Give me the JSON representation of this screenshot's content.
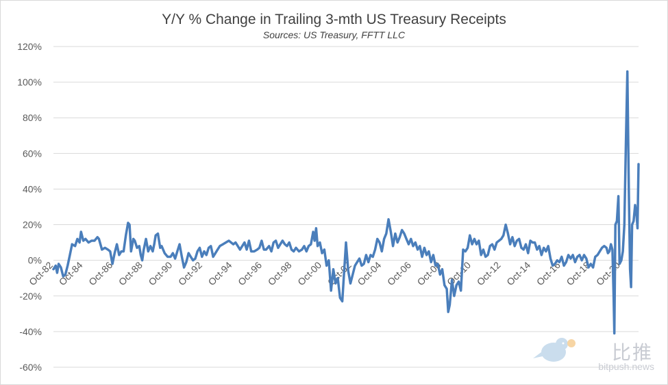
{
  "chart_data": {
    "type": "line",
    "title": "Y/Y % Change in Trailing 3-mth US Treasury Receipts",
    "subtitle": "Sources: US Treasury, FFTT LLC",
    "xlabel": "",
    "ylabel": "",
    "ylim": [
      -60,
      120
    ],
    "y_ticks": [
      "-60%",
      "-40%",
      "-20%",
      "0%",
      "20%",
      "40%",
      "60%",
      "80%",
      "100%",
      "120%"
    ],
    "x_ticks": [
      "Oct-82",
      "Oct-84",
      "Oct-86",
      "Oct-88",
      "Oct-90",
      "Oct-92",
      "Oct-94",
      "Oct-96",
      "Oct-98",
      "Oct-00",
      "Oct-02",
      "Oct-04",
      "Oct-06",
      "Oct-08",
      "Oct-10",
      "Oct-12",
      "Oct-14",
      "Oct-16",
      "Oct-18",
      "Oct-20"
    ],
    "grid": "horizontal",
    "line_color": "#4a7ebb",
    "series": [
      {
        "points": [
          [
            1982.75,
            -5
          ],
          [
            1982.9,
            -3
          ],
          [
            1983.0,
            -7
          ],
          [
            1983.1,
            -2
          ],
          [
            1983.25,
            -4
          ],
          [
            1983.4,
            -9
          ],
          [
            1983.55,
            -8
          ],
          [
            1983.7,
            -3
          ],
          [
            1983.85,
            3
          ],
          [
            1984.0,
            9
          ],
          [
            1984.2,
            8
          ],
          [
            1984.35,
            12
          ],
          [
            1984.5,
            10
          ],
          [
            1984.6,
            16
          ],
          [
            1984.75,
            11
          ],
          [
            1984.9,
            12
          ],
          [
            1985.1,
            10
          ],
          [
            1985.3,
            11
          ],
          [
            1985.5,
            11
          ],
          [
            1985.7,
            13
          ],
          [
            1985.8,
            12
          ],
          [
            1986.0,
            6
          ],
          [
            1986.2,
            7
          ],
          [
            1986.4,
            6
          ],
          [
            1986.55,
            5
          ],
          [
            1986.7,
            -2
          ],
          [
            1986.85,
            4
          ],
          [
            1987.0,
            9
          ],
          [
            1987.15,
            3
          ],
          [
            1987.3,
            5
          ],
          [
            1987.45,
            5
          ],
          [
            1987.6,
            14
          ],
          [
            1987.75,
            21
          ],
          [
            1987.85,
            20
          ],
          [
            1987.95,
            5
          ],
          [
            1988.1,
            12
          ],
          [
            1988.2,
            11
          ],
          [
            1988.35,
            7
          ],
          [
            1988.5,
            8
          ],
          [
            1988.6,
            3
          ],
          [
            1988.7,
            0
          ],
          [
            1988.8,
            6
          ],
          [
            1988.95,
            12
          ],
          [
            1989.1,
            5
          ],
          [
            1989.25,
            8
          ],
          [
            1989.4,
            5
          ],
          [
            1989.5,
            9
          ],
          [
            1989.6,
            14
          ],
          [
            1989.75,
            15
          ],
          [
            1989.9,
            7
          ],
          [
            1990.0,
            8
          ],
          [
            1990.2,
            4
          ],
          [
            1990.4,
            2
          ],
          [
            1990.6,
            2
          ],
          [
            1990.75,
            4
          ],
          [
            1990.9,
            1
          ],
          [
            1991.05,
            5
          ],
          [
            1991.2,
            9
          ],
          [
            1991.35,
            2
          ],
          [
            1991.5,
            -4
          ],
          [
            1991.65,
            -1
          ],
          [
            1991.8,
            4
          ],
          [
            1991.95,
            2
          ],
          [
            1992.1,
            0
          ],
          [
            1992.25,
            1
          ],
          [
            1992.4,
            5
          ],
          [
            1992.55,
            7
          ],
          [
            1992.7,
            2
          ],
          [
            1992.85,
            5
          ],
          [
            1993.0,
            3
          ],
          [
            1993.15,
            7
          ],
          [
            1993.3,
            8
          ],
          [
            1993.45,
            2
          ],
          [
            1993.6,
            4
          ],
          [
            1993.75,
            6
          ],
          [
            1993.9,
            8
          ],
          [
            1994.1,
            9
          ],
          [
            1994.3,
            10
          ],
          [
            1994.5,
            11
          ],
          [
            1994.65,
            10
          ],
          [
            1994.8,
            9
          ],
          [
            1994.95,
            10
          ],
          [
            1995.1,
            8
          ],
          [
            1995.25,
            6
          ],
          [
            1995.4,
            8
          ],
          [
            1995.55,
            10
          ],
          [
            1995.7,
            6
          ],
          [
            1995.85,
            11
          ],
          [
            1996.0,
            5
          ],
          [
            1996.2,
            5
          ],
          [
            1996.4,
            6
          ],
          [
            1996.55,
            7
          ],
          [
            1996.7,
            11
          ],
          [
            1996.85,
            6
          ],
          [
            1997.0,
            6
          ],
          [
            1997.2,
            8
          ],
          [
            1997.35,
            5
          ],
          [
            1997.5,
            10
          ],
          [
            1997.65,
            11
          ],
          [
            1997.8,
            7
          ],
          [
            1997.95,
            9
          ],
          [
            1998.1,
            11
          ],
          [
            1998.25,
            9
          ],
          [
            1998.4,
            8
          ],
          [
            1998.55,
            10
          ],
          [
            1998.7,
            6
          ],
          [
            1998.85,
            5
          ],
          [
            1999.0,
            7
          ],
          [
            1999.2,
            5
          ],
          [
            1999.4,
            6
          ],
          [
            1999.55,
            8
          ],
          [
            1999.7,
            5
          ],
          [
            1999.85,
            8
          ],
          [
            2000.0,
            9
          ],
          [
            2000.15,
            16
          ],
          [
            2000.25,
            11
          ],
          [
            2000.35,
            18
          ],
          [
            2000.45,
            8
          ],
          [
            2000.6,
            10
          ],
          [
            2000.75,
            4
          ],
          [
            2000.9,
            6
          ],
          [
            2001.05,
            -3
          ],
          [
            2001.2,
            0
          ],
          [
            2001.35,
            -17
          ],
          [
            2001.5,
            -5
          ],
          [
            2001.65,
            -13
          ],
          [
            2001.8,
            -10
          ],
          [
            2001.95,
            -21
          ],
          [
            2002.1,
            -23
          ],
          [
            2002.2,
            -10
          ],
          [
            2002.35,
            10
          ],
          [
            2002.5,
            -6
          ],
          [
            2002.65,
            -13
          ],
          [
            2002.8,
            -8
          ],
          [
            2002.95,
            -3
          ],
          [
            2003.1,
            -1
          ],
          [
            2003.25,
            1
          ],
          [
            2003.4,
            -3
          ],
          [
            2003.55,
            -2
          ],
          [
            2003.7,
            3
          ],
          [
            2003.85,
            -1
          ],
          [
            2004.0,
            3
          ],
          [
            2004.15,
            2
          ],
          [
            2004.3,
            6
          ],
          [
            2004.45,
            12
          ],
          [
            2004.6,
            10
          ],
          [
            2004.75,
            5
          ],
          [
            2004.9,
            12
          ],
          [
            2005.05,
            15
          ],
          [
            2005.2,
            23
          ],
          [
            2005.35,
            16
          ],
          [
            2005.5,
            8
          ],
          [
            2005.65,
            15
          ],
          [
            2005.8,
            10
          ],
          [
            2005.95,
            13
          ],
          [
            2006.1,
            17
          ],
          [
            2006.25,
            15
          ],
          [
            2006.4,
            12
          ],
          [
            2006.55,
            9
          ],
          [
            2006.7,
            12
          ],
          [
            2006.85,
            8
          ],
          [
            2007.0,
            10
          ],
          [
            2007.15,
            6
          ],
          [
            2007.3,
            8
          ],
          [
            2007.45,
            2
          ],
          [
            2007.6,
            7
          ],
          [
            2007.75,
            3
          ],
          [
            2007.9,
            5
          ],
          [
            2008.05,
            -1
          ],
          [
            2008.2,
            3
          ],
          [
            2008.35,
            -3
          ],
          [
            2008.5,
            -2
          ],
          [
            2008.65,
            -8
          ],
          [
            2008.8,
            -5
          ],
          [
            2008.95,
            -14
          ],
          [
            2009.1,
            -16
          ],
          [
            2009.2,
            -29
          ],
          [
            2009.3,
            -25
          ],
          [
            2009.45,
            -11
          ],
          [
            2009.6,
            -20
          ],
          [
            2009.75,
            -14
          ],
          [
            2009.9,
            -12
          ],
          [
            2010.05,
            -17
          ],
          [
            2010.2,
            6
          ],
          [
            2010.35,
            5
          ],
          [
            2010.5,
            7
          ],
          [
            2010.65,
            14
          ],
          [
            2010.8,
            9
          ],
          [
            2010.95,
            12
          ],
          [
            2011.1,
            9
          ],
          [
            2011.25,
            11
          ],
          [
            2011.4,
            3
          ],
          [
            2011.55,
            6
          ],
          [
            2011.7,
            2
          ],
          [
            2011.85,
            3
          ],
          [
            2012.0,
            8
          ],
          [
            2012.15,
            9
          ],
          [
            2012.3,
            6
          ],
          [
            2012.45,
            10
          ],
          [
            2012.6,
            11
          ],
          [
            2012.75,
            12
          ],
          [
            2012.9,
            14
          ],
          [
            2013.05,
            20
          ],
          [
            2013.2,
            15
          ],
          [
            2013.35,
            9
          ],
          [
            2013.5,
            13
          ],
          [
            2013.65,
            8
          ],
          [
            2013.8,
            11
          ],
          [
            2013.95,
            12
          ],
          [
            2014.1,
            7
          ],
          [
            2014.25,
            6
          ],
          [
            2014.4,
            9
          ],
          [
            2014.55,
            4
          ],
          [
            2014.7,
            11
          ],
          [
            2014.85,
            10
          ],
          [
            2015.0,
            10
          ],
          [
            2015.15,
            6
          ],
          [
            2015.3,
            8
          ],
          [
            2015.45,
            3
          ],
          [
            2015.6,
            7
          ],
          [
            2015.75,
            5
          ],
          [
            2015.9,
            8
          ],
          [
            2016.05,
            1
          ],
          [
            2016.2,
            -3
          ],
          [
            2016.35,
            -2
          ],
          [
            2016.5,
            0
          ],
          [
            2016.65,
            -1
          ],
          [
            2016.8,
            2
          ],
          [
            2016.95,
            -3
          ],
          [
            2017.1,
            -1
          ],
          [
            2017.25,
            3
          ],
          [
            2017.4,
            1
          ],
          [
            2017.55,
            3
          ],
          [
            2017.7,
            -1
          ],
          [
            2017.85,
            2
          ],
          [
            2018.0,
            3
          ],
          [
            2018.15,
            0
          ],
          [
            2018.3,
            3
          ],
          [
            2018.45,
            1
          ],
          [
            2018.6,
            -4
          ],
          [
            2018.75,
            -2
          ],
          [
            2018.9,
            -4
          ],
          [
            2019.05,
            2
          ],
          [
            2019.2,
            3
          ],
          [
            2019.35,
            5
          ],
          [
            2019.5,
            7
          ],
          [
            2019.65,
            8
          ],
          [
            2019.8,
            7
          ],
          [
            2019.9,
            4
          ],
          [
            2020.0,
            5
          ],
          [
            2020.1,
            9
          ],
          [
            2020.2,
            6
          ],
          [
            2020.28,
            -20
          ],
          [
            2020.33,
            -41
          ],
          [
            2020.4,
            20
          ],
          [
            2020.5,
            22
          ],
          [
            2020.6,
            36
          ],
          [
            2020.68,
            -2
          ],
          [
            2020.8,
            0
          ],
          [
            2020.9,
            5
          ],
          [
            2021.0,
            20
          ],
          [
            2021.1,
            65
          ],
          [
            2021.2,
            106
          ],
          [
            2021.3,
            40
          ],
          [
            2021.38,
            -5
          ],
          [
            2021.45,
            -15
          ],
          [
            2021.52,
            20
          ],
          [
            2021.62,
            22
          ],
          [
            2021.72,
            31
          ],
          [
            2021.82,
            25
          ],
          [
            2021.88,
            18
          ],
          [
            2021.95,
            54
          ]
        ]
      }
    ]
  },
  "watermark": {
    "text": "比推",
    "sub": "bitpush.news"
  }
}
